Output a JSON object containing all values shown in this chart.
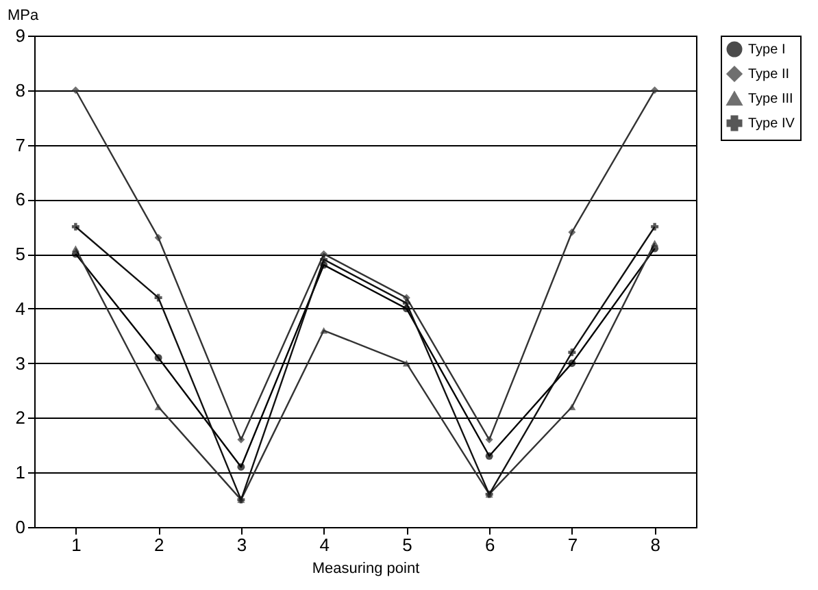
{
  "chart_data": {
    "type": "line",
    "ylabel": "MPa",
    "xlabel": "Measuring point",
    "categories": [
      "1",
      "2",
      "3",
      "4",
      "5",
      "6",
      "7",
      "8"
    ],
    "series": [
      {
        "name": "Type I",
        "color": "#000000",
        "marker": "circle",
        "values": [
          5.0,
          3.1,
          1.1,
          4.8,
          4.0,
          1.3,
          3.0,
          5.1
        ]
      },
      {
        "name": "Type II",
        "color": "#333333",
        "marker": "diamond",
        "values": [
          8.0,
          5.3,
          1.6,
          5.0,
          4.2,
          1.6,
          5.4,
          8.0
        ]
      },
      {
        "name": "Type III",
        "color": "#333333",
        "marker": "triangle",
        "values": [
          5.1,
          2.2,
          0.5,
          3.6,
          3.0,
          0.6,
          2.2,
          5.2
        ]
      },
      {
        "name": "Type IV",
        "color": "#111111",
        "marker": "cross",
        "values": [
          5.5,
          4.2,
          0.5,
          4.9,
          4.1,
          0.6,
          3.2,
          5.5
        ]
      }
    ],
    "ylim": [
      0,
      9
    ],
    "yticks": [
      0,
      1,
      2,
      3,
      4,
      5,
      6,
      7,
      8,
      9
    ],
    "grid": "y",
    "legend": "right"
  }
}
